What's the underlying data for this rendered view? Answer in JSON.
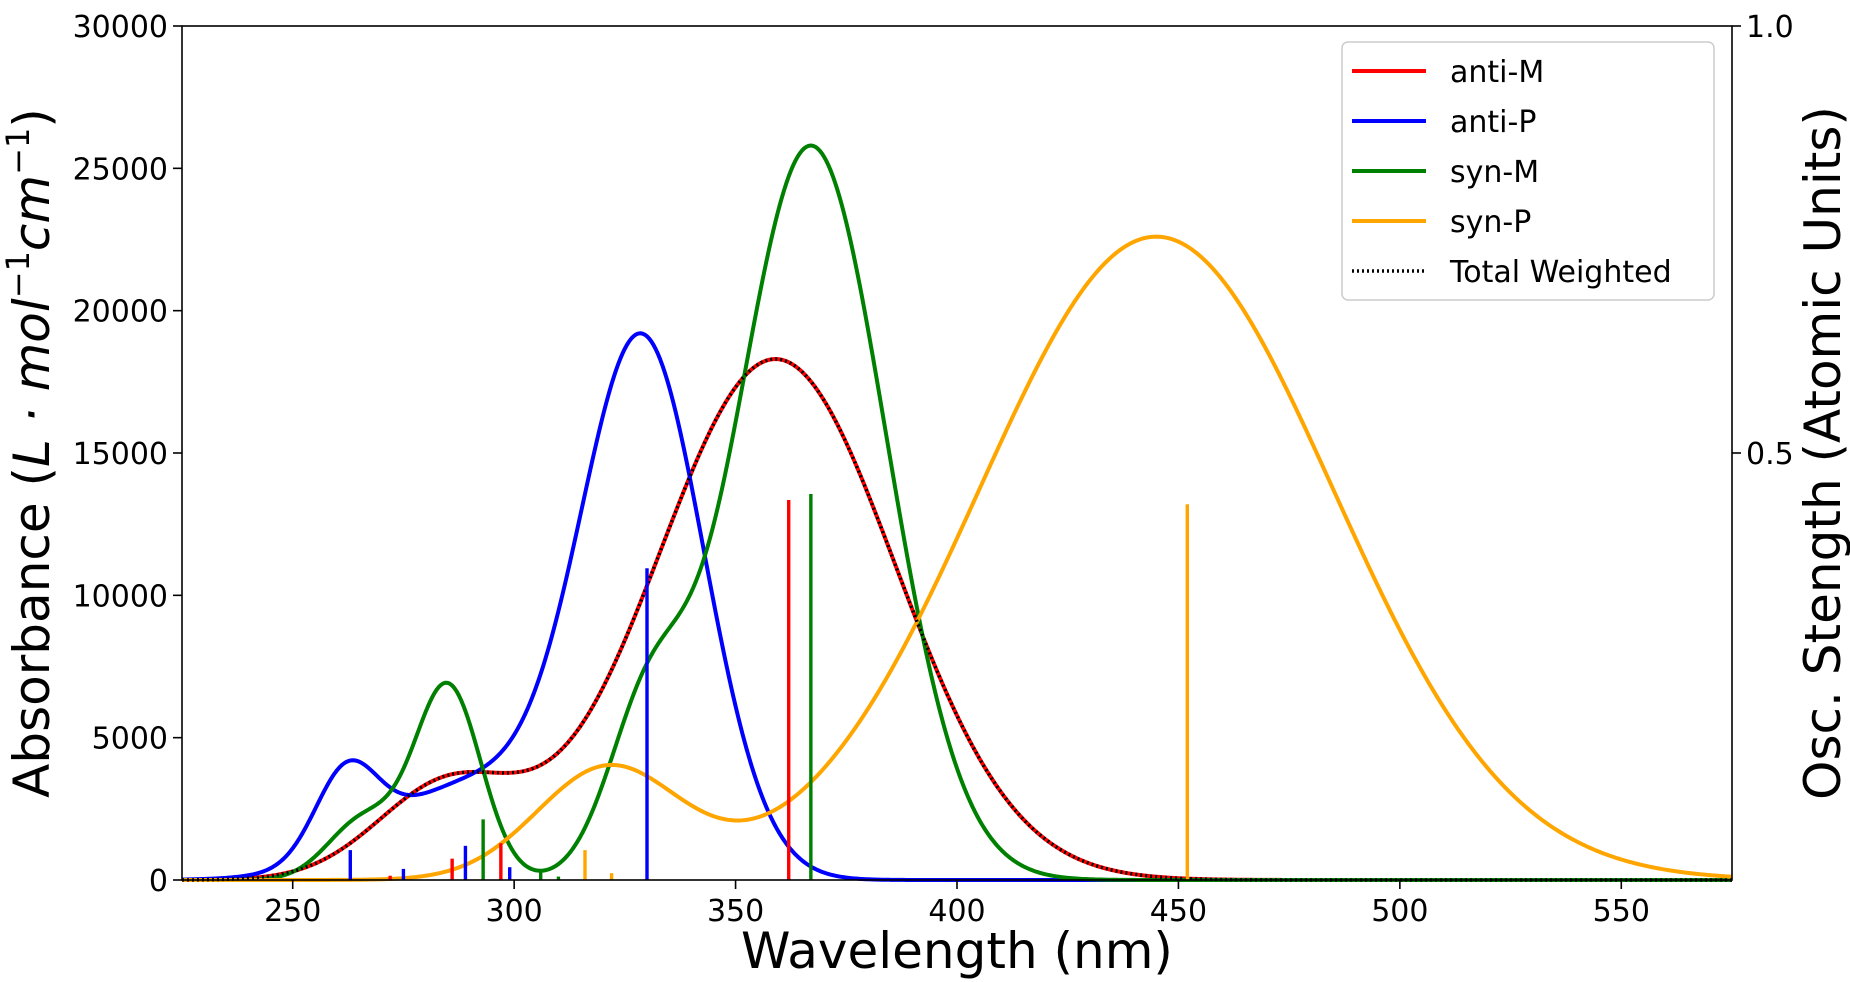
{
  "chart_data": {
    "type": "line",
    "xlabel": "Wavelength (nm)",
    "ylabel_left": "Absorbance (L·mol⁻¹cm⁻¹)",
    "ylabel_left_parts": {
      "text": "Absorbance (",
      "math": "L · mol",
      "sup1": "−1",
      "math2": "cm",
      "sup2": "−1",
      "close": ")"
    },
    "ylabel_right": "Osc. Stength (Atomic Units)",
    "xlim": [
      225,
      575
    ],
    "ylim_left": [
      0,
      30000
    ],
    "ylim_right": [
      0,
      1.0
    ],
    "xticks": [
      250,
      300,
      350,
      400,
      450,
      500,
      550
    ],
    "yticks_left": [
      0,
      5000,
      10000,
      15000,
      20000,
      25000,
      30000
    ],
    "yticks_right": [
      0.5,
      1.0
    ],
    "yticks_right_labels": [
      "0.5",
      "1.0"
    ],
    "legend_position": "top-right",
    "series": [
      {
        "name": "anti-M",
        "color": "#ff0000",
        "style": "solid",
        "bands": [
          {
            "center": 285,
            "width": 16,
            "height": 3250
          },
          {
            "center": 359,
            "width": 27,
            "height": 18300
          }
        ],
        "sticks": [
          {
            "x": 272,
            "f": 0.005
          },
          {
            "x": 286,
            "f": 0.025
          },
          {
            "x": 297,
            "f": 0.043
          },
          {
            "x": 362,
            "f": 0.445
          }
        ]
      },
      {
        "name": "anti-P",
        "color": "#0000ff",
        "style": "solid",
        "bands": [
          {
            "center": 262,
            "width": 7,
            "height": 2900
          },
          {
            "center": 290,
            "width": 20,
            "height": 3300
          },
          {
            "center": 329,
            "width": 14,
            "height": 18700
          }
        ],
        "sticks": [
          {
            "x": 263,
            "f": 0.035
          },
          {
            "x": 275,
            "f": 0.013
          },
          {
            "x": 289,
            "f": 0.04
          },
          {
            "x": 299,
            "f": 0.015
          },
          {
            "x": 330,
            "f": 0.365
          }
        ]
      },
      {
        "name": "syn-M",
        "color": "#008000",
        "style": "solid",
        "bands": [
          {
            "center": 266,
            "width": 8,
            "height": 2100
          },
          {
            "center": 285,
            "width": 7.5,
            "height": 6800
          },
          {
            "center": 330,
            "width": 9,
            "height": 5200
          },
          {
            "center": 367,
            "width": 17,
            "height": 25800
          }
        ],
        "sticks": [
          {
            "x": 293,
            "f": 0.071
          },
          {
            "x": 306,
            "f": 0.009
          },
          {
            "x": 310,
            "f": 0.004
          },
          {
            "x": 367,
            "f": 0.452
          }
        ]
      },
      {
        "name": "syn-P",
        "color": "#ffa500",
        "style": "solid",
        "bands": [
          {
            "center": 321,
            "width": 16,
            "height": 3850
          },
          {
            "center": 445,
            "width": 40,
            "height": 22600
          }
        ],
        "sticks": [
          {
            "x": 316,
            "f": 0.035
          },
          {
            "x": 322,
            "f": 0.008
          },
          {
            "x": 452,
            "f": 0.44
          }
        ]
      },
      {
        "name": "Total Weighted",
        "color": "#000000",
        "style": "dotted",
        "follows": "anti-M"
      }
    ]
  }
}
